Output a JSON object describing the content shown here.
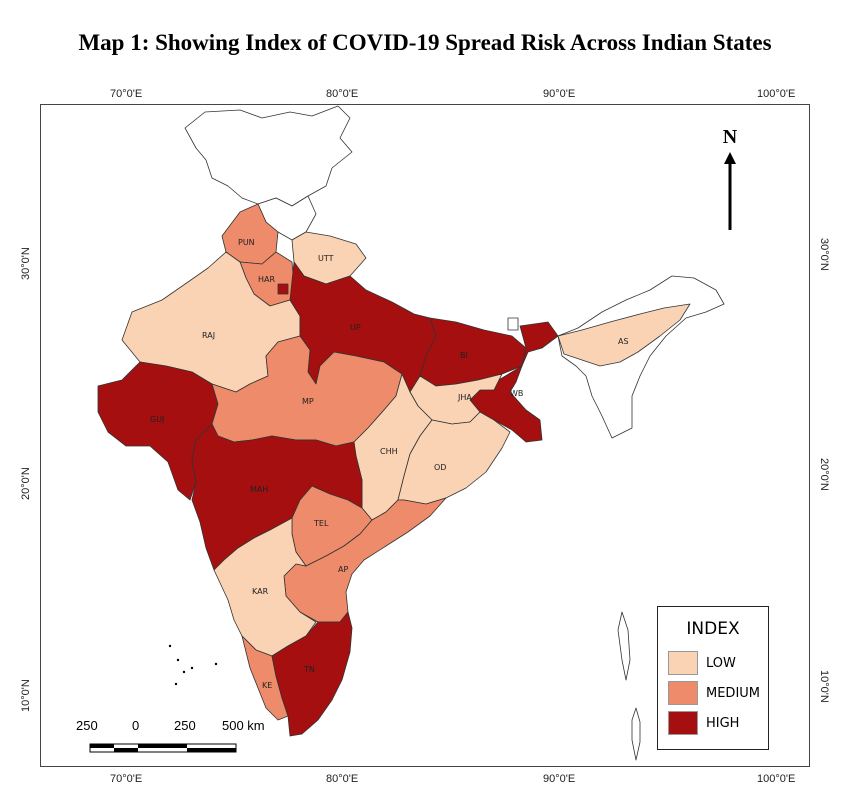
{
  "title": "Map 1: Showing Index of COVID-19 Spread Risk Across Indian States",
  "longitude_ticks": [
    "70°0'E",
    "80°0'E",
    "90°0'E",
    "100°0'E"
  ],
  "latitude_ticks": [
    "30°0'N",
    "20°0'N",
    "10°0'N"
  ],
  "north_arrow": {
    "label": "N"
  },
  "legend": {
    "title": "INDEX",
    "items": [
      {
        "label": "LOW",
        "color": "#f9d3b4"
      },
      {
        "label": "MEDIUM",
        "color": "#ee8b6a"
      },
      {
        "label": "HIGH",
        "color": "#a50f0f"
      }
    ]
  },
  "scale_bar": {
    "labels": [
      "250",
      "0",
      "250",
      "500 km"
    ]
  },
  "colors": {
    "low": "#f9d3b4",
    "medium": "#ee8b6a",
    "high": "#a50f0f",
    "none": "#ffffff",
    "border": "#333333"
  },
  "states": [
    {
      "code": "PUN",
      "risk": "medium"
    },
    {
      "code": "HAR",
      "risk": "medium"
    },
    {
      "code": "UTT",
      "risk": "low"
    },
    {
      "code": "RAJ",
      "risk": "low"
    },
    {
      "code": "UP",
      "risk": "high"
    },
    {
      "code": "BI",
      "risk": "high"
    },
    {
      "code": "AS",
      "risk": "low"
    },
    {
      "code": "GUJ",
      "risk": "high"
    },
    {
      "code": "MP",
      "risk": "medium"
    },
    {
      "code": "JHA",
      "risk": "low"
    },
    {
      "code": "WB",
      "risk": "high"
    },
    {
      "code": "CHH",
      "risk": "low"
    },
    {
      "code": "OD",
      "risk": "low"
    },
    {
      "code": "MAH",
      "risk": "high"
    },
    {
      "code": "TEL",
      "risk": "medium"
    },
    {
      "code": "AP",
      "risk": "medium"
    },
    {
      "code": "KAR",
      "risk": "low"
    },
    {
      "code": "TN",
      "risk": "high"
    },
    {
      "code": "KE",
      "risk": "medium"
    }
  ]
}
